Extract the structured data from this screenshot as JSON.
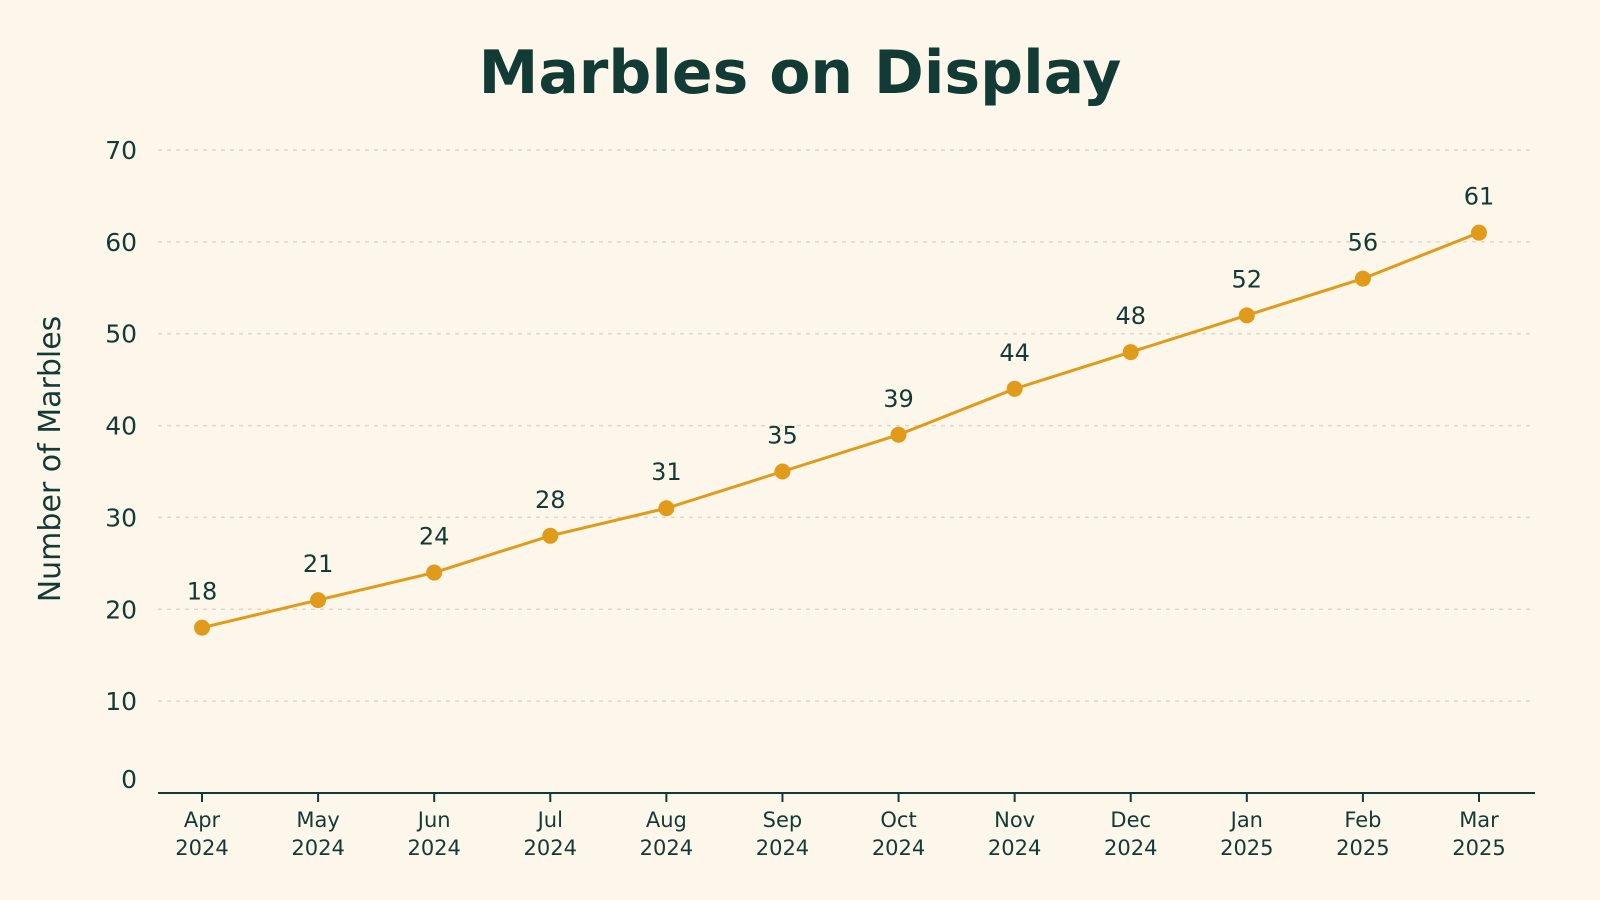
{
  "colors": {
    "background": "#fdf6ea",
    "text": "#123b35",
    "series": "#e09b1a",
    "grid": "#e0d9c8"
  },
  "chart_data": {
    "type": "line",
    "title": "Marbles on Display",
    "xlabel": "",
    "ylabel": "Number of Marbles",
    "ylim": [
      0,
      70
    ],
    "yticks": [
      0,
      10,
      20,
      30,
      40,
      50,
      60,
      70
    ],
    "grid": true,
    "categories": [
      [
        "Apr",
        "2024"
      ],
      [
        "May",
        "2024"
      ],
      [
        "Jun",
        "2024"
      ],
      [
        "Jul",
        "2024"
      ],
      [
        "Aug",
        "2024"
      ],
      [
        "Sep",
        "2024"
      ],
      [
        "Oct",
        "2024"
      ],
      [
        "Nov",
        "2024"
      ],
      [
        "Dec",
        "2024"
      ],
      [
        "Jan",
        "2025"
      ],
      [
        "Feb",
        "2025"
      ],
      [
        "Mar",
        "2025"
      ]
    ],
    "series": [
      {
        "values": [
          18,
          21,
          24,
          28,
          31,
          35,
          39,
          44,
          48,
          52,
          56,
          61
        ]
      }
    ]
  }
}
